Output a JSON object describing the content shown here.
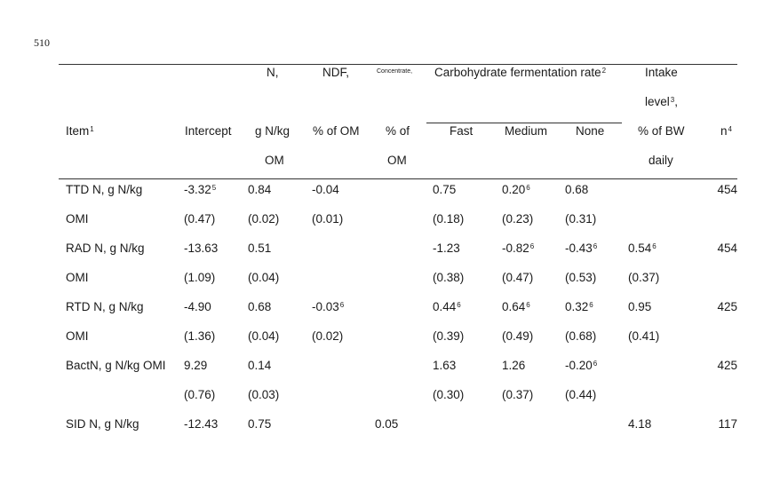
{
  "line_number": "510",
  "headers": {
    "n_top": "N,",
    "ndf_top": "NDF,",
    "conc_top": "Concentrate,",
    "carb_group": "Carbohydrate fermentation rate",
    "carb_sup": "2",
    "intake_1": "Intake",
    "intake_2": "level",
    "intake_2_sup": "3",
    "intake_2_tail": ",",
    "item": "Item",
    "item_sup": "1",
    "intercept": "Intercept",
    "n_unit_1": "g N/kg",
    "n_unit_2": "OM",
    "ndf_unit": "% of OM",
    "conc_unit_1": "% of",
    "conc_unit_2": "OM",
    "fast": "Fast",
    "medium": "Medium",
    "none": "None",
    "intake_unit_1": "% of BW",
    "intake_unit_2": "daily",
    "n_col": "n",
    "n_col_sup": "4"
  },
  "rows": [
    {
      "item": "TTD N, g N/kg",
      "intercept": "-3.32",
      "intercept_sup": "5",
      "n": "0.84",
      "ndf": "-0.04",
      "conc": "",
      "fast": "0.75",
      "medium": "0.20",
      "medium_sup": "6",
      "none": "0.68",
      "intake": "",
      "count": "454"
    },
    {
      "item": "OMI",
      "intercept": "(0.47)",
      "n": "(0.02)",
      "ndf": "(0.01)",
      "conc": "",
      "fast": "(0.18)",
      "medium": "(0.23)",
      "none": "(0.31)",
      "intake": "",
      "count": ""
    },
    {
      "item": "RAD N, g N/kg",
      "intercept": "-13.63",
      "n": "0.51",
      "ndf": "",
      "conc": "",
      "fast": "-1.23",
      "medium": "-0.82",
      "medium_sup": "6",
      "none": "-0.43",
      "none_sup": "6",
      "intake": "0.54",
      "intake_sup": "6",
      "count": "454"
    },
    {
      "item": "OMI",
      "intercept": "(1.09)",
      "n": "(0.04)",
      "ndf": "",
      "conc": "",
      "fast": "(0.38)",
      "medium": "(0.47)",
      "none": "(0.53)",
      "intake": "(0.37)",
      "count": ""
    },
    {
      "item": "RTD N, g N/kg",
      "intercept": "-4.90",
      "n": "0.68",
      "ndf": "-0.03",
      "ndf_sup": "6",
      "conc": "",
      "fast": "0.44",
      "fast_sup": "6",
      "medium": "0.64",
      "medium_sup": "6",
      "none": "0.32",
      "none_sup": "6",
      "intake": "0.95",
      "count": "425"
    },
    {
      "item": "OMI",
      "intercept": "(1.36)",
      "n": "(0.04)",
      "ndf": "(0.02)",
      "conc": "",
      "fast": "(0.39)",
      "medium": "(0.49)",
      "none": "(0.68)",
      "intake": "(0.41)",
      "count": ""
    },
    {
      "item": "BactN, g N/kg OMI",
      "intercept": "9.29",
      "n": "0.14",
      "ndf": "",
      "conc": "",
      "fast": "1.63",
      "medium": "1.26",
      "none": "-0.20",
      "none_sup": "6",
      "intake": "",
      "count": "425"
    },
    {
      "item": "",
      "intercept": "(0.76)",
      "n": "(0.03)",
      "ndf": "",
      "conc": "",
      "fast": "(0.30)",
      "medium": "(0.37)",
      "none": "(0.44)",
      "intake": "",
      "count": ""
    },
    {
      "item": "SID N, g N/kg",
      "intercept": "-12.43",
      "n": "0.75",
      "ndf": "",
      "conc": "0.05",
      "fast": "",
      "medium": "",
      "none": "",
      "intake": "4.18",
      "count": "117"
    }
  ]
}
